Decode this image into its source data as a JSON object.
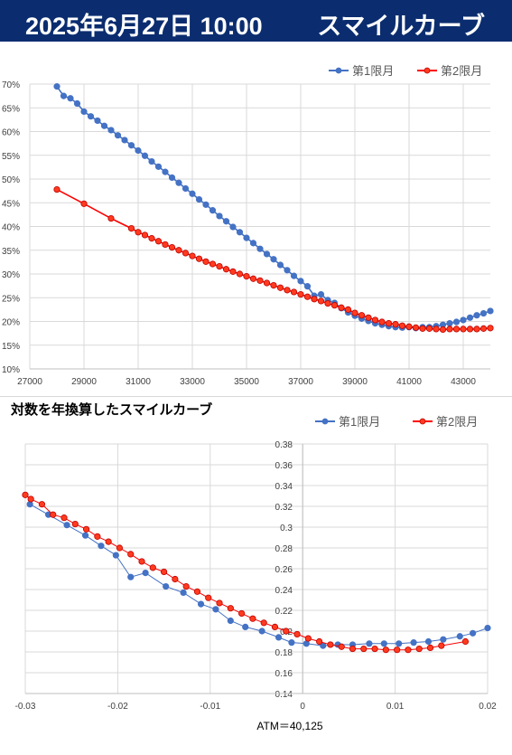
{
  "banner": {
    "date": "2025年6月27日 10:00",
    "title": "スマイルカーブ"
  },
  "chart_data": [
    {
      "type": "line",
      "title": "",
      "xlim": [
        27000,
        44000
      ],
      "ylim": [
        10,
        70
      ],
      "x_ticks": [
        "27000",
        "29000",
        "31000",
        "33000",
        "35000",
        "37000",
        "39000",
        "41000",
        "43000"
      ],
      "x_tick_values": [
        27000,
        29000,
        31000,
        33000,
        35000,
        37000,
        39000,
        41000,
        43000
      ],
      "y_ticks": [
        "10%",
        "15%",
        "20%",
        "25%",
        "30%",
        "35%",
        "40%",
        "45%",
        "50%",
        "55%",
        "60%",
        "65%",
        "70%"
      ],
      "y_tick_values": [
        10,
        15,
        20,
        25,
        30,
        35,
        40,
        45,
        50,
        55,
        60,
        65,
        70
      ],
      "grid": true,
      "legend": "top-right",
      "series": [
        {
          "name": "第1限月",
          "color": "#4472c4",
          "x": [
            28000,
            28250,
            28500,
            28750,
            29000,
            29250,
            29500,
            29750,
            30000,
            30250,
            30500,
            30750,
            31000,
            31250,
            31500,
            31750,
            32000,
            32250,
            32500,
            32750,
            33000,
            33250,
            33500,
            33750,
            34000,
            34250,
            34500,
            34750,
            35000,
            35250,
            35500,
            35750,
            36000,
            36250,
            36500,
            36750,
            37000,
            37250,
            37500,
            37750,
            38000,
            38250,
            38500,
            38750,
            39000,
            39250,
            39500,
            39750,
            40000,
            40250,
            40500,
            40750,
            41000,
            41250,
            41500,
            41750,
            42000,
            42250,
            42500,
            42750,
            43000,
            43250,
            43500,
            43750,
            44000
          ],
          "y": [
            69.5,
            67.5,
            67,
            65.9,
            64.2,
            63.2,
            62.3,
            61.2,
            60.3,
            59.2,
            58.2,
            57.1,
            56,
            54.9,
            53.7,
            52.6,
            51.5,
            50.3,
            49.2,
            48,
            46.9,
            45.7,
            44.6,
            43.4,
            42.2,
            41.1,
            39.9,
            38.8,
            37.6,
            36.5,
            35.3,
            34.2,
            33.1,
            31.9,
            30.8,
            29.6,
            28.5,
            27.4,
            25.4,
            25.7,
            24.5,
            23.9,
            22.8,
            21.9,
            21.2,
            20.6,
            20.1,
            19.6,
            19.3,
            19,
            18.8,
            18.7,
            18.8,
            18.6,
            18.8,
            18.8,
            19,
            19.3,
            19.6,
            19.9,
            20.3,
            20.8,
            21.3,
            21.7,
            22.2
          ]
        },
        {
          "name": "第2限月",
          "color": "#ff0000",
          "x": [
            28000,
            29000,
            30000,
            30750,
            31000,
            31250,
            31500,
            31750,
            32000,
            32250,
            32500,
            32750,
            33000,
            33250,
            33500,
            33750,
            34000,
            34250,
            34500,
            34750,
            35000,
            35250,
            35500,
            35750,
            36000,
            36250,
            36500,
            36750,
            37000,
            37250,
            37500,
            37750,
            38000,
            38250,
            38500,
            38750,
            39000,
            39250,
            39500,
            39750,
            40000,
            40250,
            40500,
            40750,
            41000,
            41250,
            41500,
            41750,
            42000,
            42250,
            42500,
            42750,
            43000,
            43250,
            43500,
            43750,
            44000
          ],
          "y": [
            47.8,
            44.8,
            41.7,
            39.6,
            38.8,
            38.2,
            37.5,
            36.9,
            36.2,
            35.6,
            35,
            34.4,
            33.8,
            33.2,
            32.6,
            32.1,
            31.6,
            31,
            30.5,
            30,
            29.5,
            29,
            28.6,
            28.1,
            27.6,
            27.1,
            26.6,
            26.2,
            25.7,
            25.2,
            24.7,
            24.3,
            23.8,
            23.4,
            22.9,
            22.5,
            21.8,
            21.3,
            20.8,
            20.3,
            19.9,
            19.6,
            19.4,
            19.1,
            18.9,
            18.7,
            18.5,
            18.5,
            18.4,
            18.3,
            18.4,
            18.4,
            18.4,
            18.4,
            18.4,
            18.5,
            18.6
          ]
        }
      ]
    },
    {
      "type": "line",
      "title": "対数を年換算したスマイルカーブ",
      "xlim": [
        -0.03,
        0.02
      ],
      "ylim": [
        0.14,
        0.38
      ],
      "x_ticks": [
        "-0.03",
        "-0.02",
        "-0.01",
        "0",
        "0.01",
        "0.02"
      ],
      "x_tick_values": [
        -0.03,
        -0.02,
        -0.01,
        0,
        0.01,
        0.02
      ],
      "y_ticks": [
        "0.14",
        "0.16",
        "0.18",
        "0.2",
        "0.22",
        "0.24",
        "0.26",
        "0.28",
        "0.3",
        "0.32",
        "0.34",
        "0.36",
        "0.38"
      ],
      "y_tick_values": [
        0.14,
        0.16,
        0.18,
        0.2,
        0.22,
        0.24,
        0.26,
        0.28,
        0.3,
        0.32,
        0.34,
        0.36,
        0.38
      ],
      "grid": true,
      "legend": "top-right",
      "annotation": "ATM＝40,125",
      "series": [
        {
          "name": "第1限月",
          "color": "#4472c4",
          "x": [
            -0.0295,
            -0.0275,
            -0.0255,
            -0.0235,
            -0.0218,
            -0.0202,
            -0.0186,
            -0.017,
            -0.0148,
            -0.0129,
            -0.011,
            -0.0094,
            -0.0078,
            -0.0062,
            -0.0044,
            -0.0026,
            -0.0012,
            0.0004,
            0.0022,
            0.0038,
            0.0054,
            0.0072,
            0.0088,
            0.0104,
            0.012,
            0.0136,
            0.0152,
            0.017,
            0.0184,
            0.02
          ],
          "y": [
            0.322,
            0.312,
            0.302,
            0.292,
            0.282,
            0.273,
            0.252,
            0.256,
            0.243,
            0.237,
            0.226,
            0.221,
            0.21,
            0.204,
            0.2,
            0.194,
            0.189,
            0.188,
            0.186,
            0.187,
            0.187,
            0.188,
            0.188,
            0.188,
            0.189,
            0.19,
            0.192,
            0.195,
            0.198,
            0.203
          ]
        },
        {
          "name": "第2限月",
          "color": "#ff0000",
          "x": [
            -0.03,
            -0.0294,
            -0.0282,
            -0.027,
            -0.0258,
            -0.0246,
            -0.0234,
            -0.0222,
            -0.021,
            -0.0198,
            -0.0186,
            -0.0174,
            -0.0162,
            -0.015,
            -0.0138,
            -0.0126,
            -0.0114,
            -0.0102,
            -0.009,
            -0.0078,
            -0.0066,
            -0.0054,
            -0.0042,
            -0.003,
            -0.0018,
            -0.0006,
            0.0006,
            0.0018,
            0.003,
            0.0042,
            0.0054,
            0.0066,
            0.0078,
            0.009,
            0.0102,
            0.0114,
            0.0126,
            0.0138,
            0.015,
            0.0176
          ],
          "y": [
            0.331,
            0.327,
            0.322,
            0.312,
            0.309,
            0.303,
            0.298,
            0.291,
            0.286,
            0.28,
            0.274,
            0.267,
            0.261,
            0.257,
            0.25,
            0.243,
            0.238,
            0.232,
            0.227,
            0.222,
            0.217,
            0.212,
            0.208,
            0.204,
            0.2,
            0.197,
            0.193,
            0.19,
            0.187,
            0.185,
            0.183,
            0.183,
            0.183,
            0.182,
            0.182,
            0.182,
            0.183,
            0.184,
            0.186,
            0.19
          ]
        }
      ]
    }
  ]
}
